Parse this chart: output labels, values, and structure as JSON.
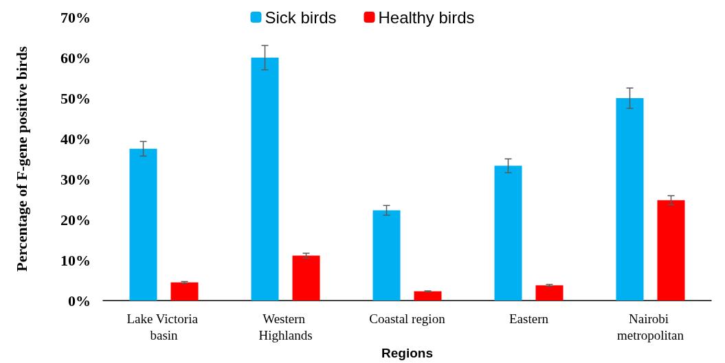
{
  "chart_data": {
    "type": "bar",
    "xlabel": "Regions",
    "ylabel": "Percentage of F-gene positive birds",
    "categories": [
      "Lake Victoria basin",
      "Western Highlands",
      "Coastal region",
      "Eastern",
      "Nairobi metropolitan"
    ],
    "series": [
      {
        "name": "Sick birds",
        "color": "#00b0f0",
        "values": [
          37.5,
          60,
          22.3,
          33.3,
          50
        ],
        "errors": [
          1.8,
          3,
          1.2,
          1.7,
          2.5
        ]
      },
      {
        "name": "Healthy birds",
        "color": "#ff0000",
        "values": [
          4.5,
          11.1,
          2.3,
          3.8,
          24.8
        ],
        "errors": [
          0.2,
          0.6,
          0.1,
          0.2,
          1.1
        ]
      }
    ],
    "ylim": [
      0,
      70
    ],
    "yticks": [
      {
        "value": 0,
        "label": "0%"
      },
      {
        "value": 10,
        "label": "10%"
      },
      {
        "value": 20,
        "label": "20%"
      },
      {
        "value": 30,
        "label": "30%"
      },
      {
        "value": 40,
        "label": "40%"
      },
      {
        "value": 50,
        "label": "50%"
      },
      {
        "value": 60,
        "label": "60%"
      },
      {
        "value": 70,
        "label": "70%"
      }
    ],
    "grid": false,
    "legend": "top"
  }
}
